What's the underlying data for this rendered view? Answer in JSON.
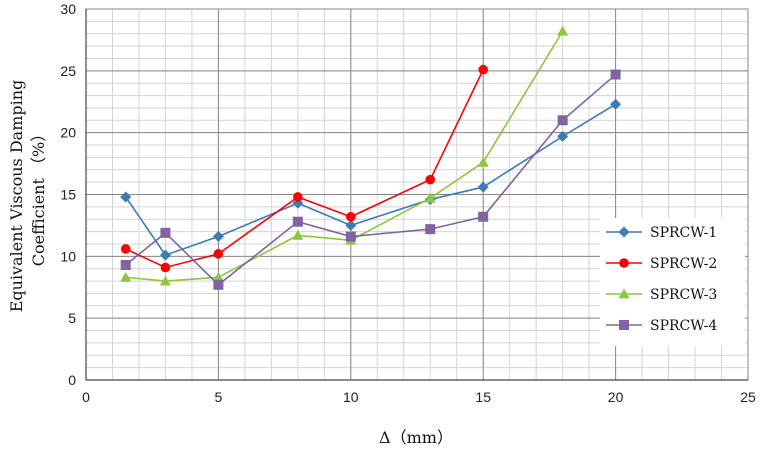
{
  "chart_data": {
    "type": "line",
    "title": "",
    "xlabel": "Δ（mm）",
    "ylabel": "Equivalent Viscous Damping Coefficient （%）",
    "ylabel_lines": [
      "Equivalent Viscous Damping",
      "Coefficient （%）"
    ],
    "xlim": [
      0,
      25
    ],
    "ylim": [
      0,
      30
    ],
    "x_ticks": [
      0,
      5,
      10,
      15,
      20,
      25
    ],
    "y_ticks": [
      0,
      5,
      10,
      15,
      20,
      25,
      30
    ],
    "grid": true,
    "legend_position": "right",
    "series": [
      {
        "name": "SPRCW-1",
        "color": "#3d7ab8",
        "marker": "diamond",
        "x": [
          1.5,
          3,
          5,
          8,
          10,
          13,
          15,
          18,
          20
        ],
        "y": [
          14.8,
          10.1,
          11.6,
          14.3,
          12.5,
          14.6,
          15.6,
          19.7,
          22.3
        ]
      },
      {
        "name": "SPRCW-2",
        "color": "#ff0000",
        "marker": "circle",
        "x": [
          1.5,
          3,
          5,
          8,
          10,
          13,
          15
        ],
        "y": [
          10.6,
          9.1,
          10.2,
          14.8,
          13.2,
          16.2,
          25.1
        ]
      },
      {
        "name": "SPRCW-3",
        "color": "#8ec63f",
        "marker": "triangle",
        "x": [
          1.5,
          3,
          5,
          8,
          10,
          13,
          15,
          18
        ],
        "y": [
          8.3,
          8.0,
          8.3,
          11.7,
          11.3,
          14.7,
          17.6,
          28.2
        ]
      },
      {
        "name": "SPRCW-4",
        "color": "#8064a2",
        "marker": "square",
        "x": [
          1.5,
          3,
          5,
          8,
          10,
          13,
          15,
          18,
          20
        ],
        "y": [
          9.3,
          11.9,
          7.7,
          12.8,
          11.6,
          12.2,
          13.2,
          21.0,
          24.7
        ]
      }
    ]
  }
}
